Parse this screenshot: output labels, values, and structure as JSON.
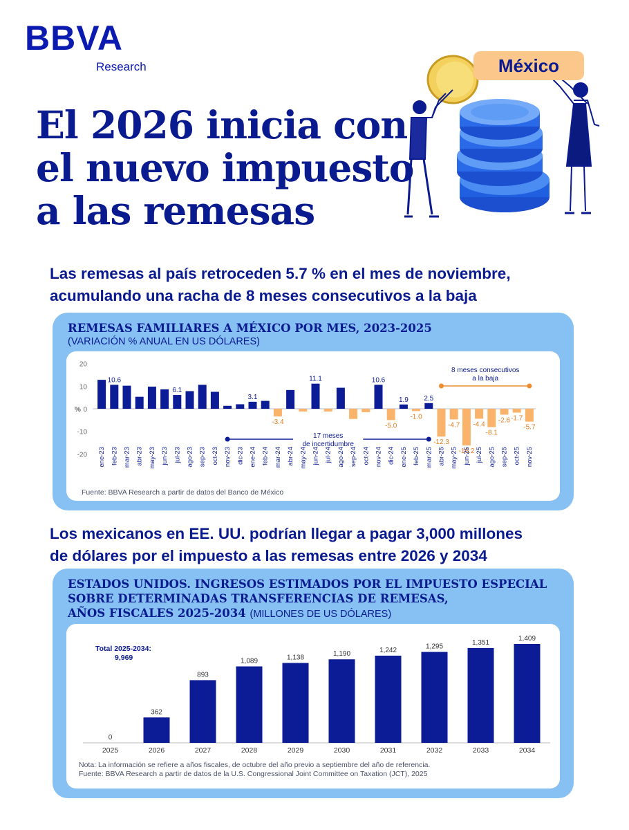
{
  "brand": {
    "name": "BBVA",
    "sub": "Research"
  },
  "headline": {
    "lines": [
      "El 2026 inicia con",
      "el nuevo impuesto",
      "a las remesas"
    ]
  },
  "badge": {
    "label": "México"
  },
  "section1": {
    "title_line1": "Las remesas al país retroceden 5.7 % en el mes de noviembre,",
    "title_line2": "acumulando una racha de 8 meses consecutivos a la baja"
  },
  "chart1": {
    "title": "REMESAS FAMILIARES A MÉXICO POR MES, 2023-2025",
    "subtitle": "(VARIACIÓN % ANUAL EN US DÓLARES)",
    "source": "Fuente: BBVA Research a partir de datos del Banco de México",
    "annot_uncertainty_line1": "17 meses",
    "annot_uncertainty_line2": "de incertidumbre",
    "annot_decline_line1": "8 meses consecutivos",
    "annot_decline_line2": "a la baja"
  },
  "section2": {
    "title_line1": "Los mexicanos en EE. UU. podrían llegar a pagar 3,000 millones",
    "title_line2": "de dólares por el impuesto a las remesas entre 2026 y 2034"
  },
  "chart2": {
    "title_line1": "ESTADOS UNIDOS. INGRESOS ESTIMADOS POR EL IMPUESTO ESPECIAL",
    "title_line2": "SOBRE DETERMINADAS TRANSFERENCIAS DE REMESAS,",
    "title_line3": "AÑOS FISCALES 2025-2034",
    "title_units": "(MILLONES DE US DÓLARES)",
    "total_label": "Total 2025-2034:",
    "total_value": "9,969",
    "note": "Nota: La información se refiere a años fiscales, de octubre del año previo a septiembre del año de referencia.",
    "source": "Fuente: BBVA Research a partir de datos de la U.S. Congressional Joint Committee on Taxation (JCT), 2025"
  },
  "chart_data": [
    {
      "type": "bar",
      "ylabel": "%",
      "ylim": [
        -20,
        20
      ],
      "yticks": [
        20,
        10,
        0,
        -10,
        -20
      ],
      "categories": [
        "ene-23",
        "feb-23",
        "mar-23",
        "abr-23",
        "may-23",
        "jun-23",
        "jul-23",
        "ago-23",
        "sep-23",
        "oct-23",
        "nov-23",
        "dic-23",
        "ene-24",
        "feb-24",
        "mar-24",
        "abr-24",
        "may-24",
        "jun-24",
        "jul-24",
        "ago-24",
        "sep-24",
        "oct-24",
        "nov-24",
        "dic-24",
        "ene-25",
        "feb-25",
        "mar-25",
        "abr-25",
        "may-25",
        "jun-25",
        "jul-25",
        "ago-25",
        "sep-25",
        "oct-25",
        "nov-25"
      ],
      "values": [
        12.8,
        10.6,
        10.2,
        5.3,
        9.8,
        8.6,
        6.1,
        7.8,
        10.6,
        7.5,
        1.3,
        2.0,
        3.1,
        3.5,
        -3.4,
        8.3,
        -1.2,
        11.1,
        -1.2,
        9.3,
        -4.5,
        -1.5,
        10.6,
        -5.0,
        1.9,
        -1.0,
        2.5,
        -12.3,
        -4.7,
        -16.2,
        -4.4,
        -8.1,
        -2.6,
        -1.7,
        -5.7
      ],
      "labels": [
        "",
        "10.6",
        "",
        "",
        "",
        "",
        "6.1",
        "",
        "",
        "",
        "",
        "",
        "3.1",
        "",
        "-3.4",
        "",
        "",
        "11.1",
        "",
        "",
        "",
        "",
        "10.6",
        "-5.0",
        "1.9",
        "-1.0",
        "2.5",
        "-12.3",
        "-4.7",
        "-16.2",
        "-4.4",
        "-8.1",
        "-2.6",
        "-1.7",
        "-5.7"
      ],
      "colors": {
        "positive": "#0c1c96",
        "negative": "#f9b36b",
        "uncertainty": "#0c1c96",
        "decline": "#f08c2c"
      }
    },
    {
      "type": "bar",
      "categories": [
        "2025",
        "2026",
        "2027",
        "2028",
        "2029",
        "2030",
        "2031",
        "2032",
        "2033",
        "2034"
      ],
      "values": [
        0,
        362,
        893,
        1089,
        1138,
        1190,
        1242,
        1295,
        1351,
        1409
      ],
      "labels": [
        "0",
        "362",
        "893",
        "1,089",
        "1,138",
        "1,190",
        "1,242",
        "1,295",
        "1,351",
        "1,409"
      ],
      "ylim": [
        0,
        1409
      ],
      "colors": {
        "bar": "#0c1c96"
      }
    }
  ]
}
